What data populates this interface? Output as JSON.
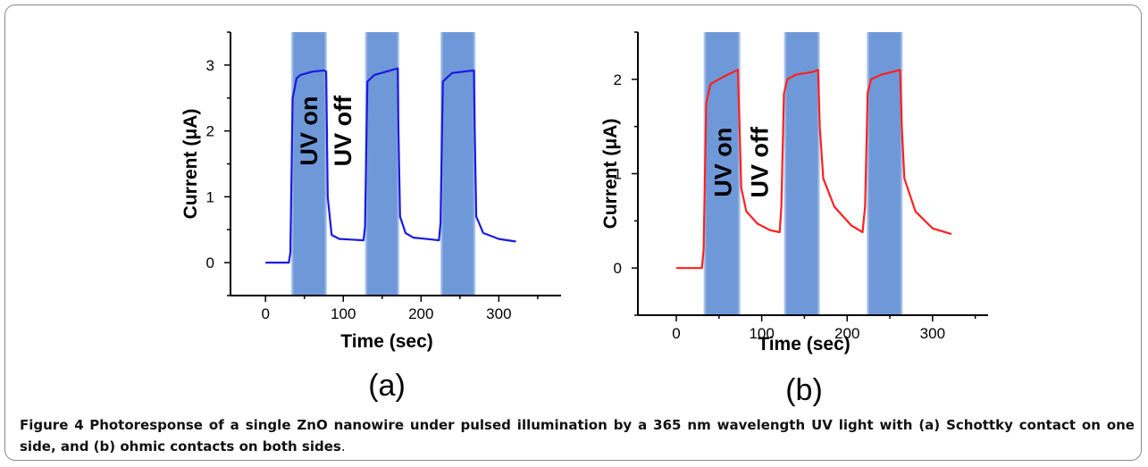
{
  "chart_data": [
    {
      "type": "line",
      "panel_label": "(a)",
      "xlabel": "Time (sec)",
      "ylabel": "Current (μA)",
      "xlim": [
        -45,
        380
      ],
      "ylim": [
        -0.5,
        3.5
      ],
      "xticks": [
        0,
        100,
        200,
        300
      ],
      "xtick_labels": [
        "0",
        "100",
        "200",
        "300"
      ],
      "yticks": [
        0,
        1,
        2,
        3
      ],
      "ytick_labels": [
        "0",
        "1",
        "2",
        "3"
      ],
      "series_color": "#1a1adf",
      "uv_band_color": "#6f98d8",
      "uv_on_intervals": [
        [
          33,
          79
        ],
        [
          128,
          172
        ],
        [
          225,
          270
        ]
      ],
      "annotations": [
        {
          "text": "UV on",
          "x": 56,
          "y": 2.0
        },
        {
          "text": "UV off",
          "x": 100,
          "y": 2.0
        }
      ],
      "x": [
        0,
        30,
        32,
        35,
        40,
        45,
        60,
        75,
        78,
        80,
        85,
        95,
        110,
        126,
        128,
        131,
        140,
        170,
        171,
        173,
        180,
        190,
        215,
        223,
        225,
        228,
        240,
        268,
        269,
        271,
        280,
        300,
        322
      ],
      "y": [
        0.0,
        0.0,
        0.15,
        2.5,
        2.8,
        2.85,
        2.9,
        2.92,
        2.9,
        1.0,
        0.42,
        0.36,
        0.35,
        0.34,
        0.55,
        2.75,
        2.85,
        2.95,
        2.0,
        0.7,
        0.45,
        0.38,
        0.35,
        0.34,
        0.6,
        2.75,
        2.88,
        2.92,
        2.0,
        0.7,
        0.45,
        0.36,
        0.32
      ]
    },
    {
      "type": "line",
      "panel_label": "(b)",
      "xlabel": "Time (sec)",
      "ylabel": "Current (μA)",
      "xlim": [
        -45,
        365
      ],
      "ylim": [
        -0.5,
        2.5
      ],
      "xticks": [
        0,
        100,
        200,
        300
      ],
      "xtick_labels": [
        "0",
        "100",
        "200",
        "300"
      ],
      "yticks": [
        0,
        1,
        2
      ],
      "ytick_labels": [
        "0",
        "1",
        "2"
      ],
      "series_color": "#ff2020",
      "uv_band_color": "#6f98d8",
      "uv_on_intervals": [
        [
          32,
          75
        ],
        [
          126,
          168
        ],
        [
          223,
          265
        ]
      ],
      "annotations": [
        {
          "text": "UV on",
          "x": 55,
          "y": 1.12
        },
        {
          "text": "UV off",
          "x": 98,
          "y": 1.12
        }
      ],
      "x": [
        0,
        30,
        32,
        35,
        40,
        50,
        60,
        72,
        74,
        76,
        82,
        95,
        110,
        121,
        123,
        126,
        130,
        140,
        160,
        166,
        168,
        172,
        185,
        205,
        218,
        221,
        224,
        228,
        240,
        262,
        264,
        267,
        280,
        300,
        322
      ],
      "y": [
        0.0,
        0.0,
        0.2,
        1.75,
        1.95,
        2.0,
        2.05,
        2.1,
        1.5,
        0.85,
        0.6,
        0.47,
        0.4,
        0.38,
        0.65,
        1.85,
        2.0,
        2.05,
        2.08,
        2.1,
        1.5,
        0.95,
        0.65,
        0.45,
        0.38,
        0.65,
        1.85,
        2.0,
        2.05,
        2.1,
        1.5,
        0.95,
        0.6,
        0.42,
        0.36
      ]
    }
  ],
  "caption": {
    "prefix": "Figure 4",
    "body": "Photoresponse of a single ZnO nanowire under pulsed illumination by a 365 nm wavelength UV light with (a) Schottky contact on one side, and (b) ohmic contacts on both sides",
    "suffix": "."
  }
}
